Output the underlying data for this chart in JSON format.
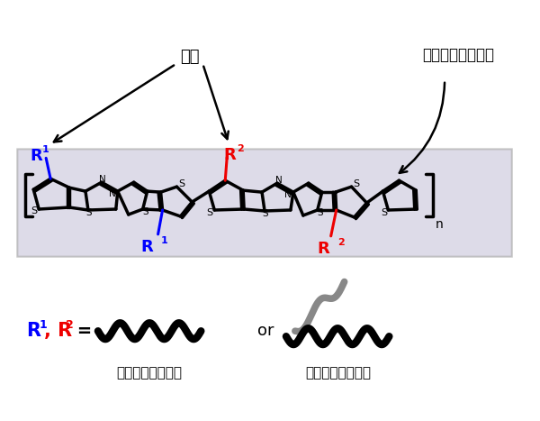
{
  "bg_color": "#ffffff",
  "highlight_color": "#ccc8dc",
  "label_sokusa": "側鎖",
  "label_shusa": "主鎖（基本構造）",
  "label_linear": "直線状アルキル基",
  "label_branched": "分岐状アルキル基",
  "R1_color": "#0000ff",
  "R2_color": "#ee0000",
  "black_color": "#000000",
  "gray_color": "#888888"
}
